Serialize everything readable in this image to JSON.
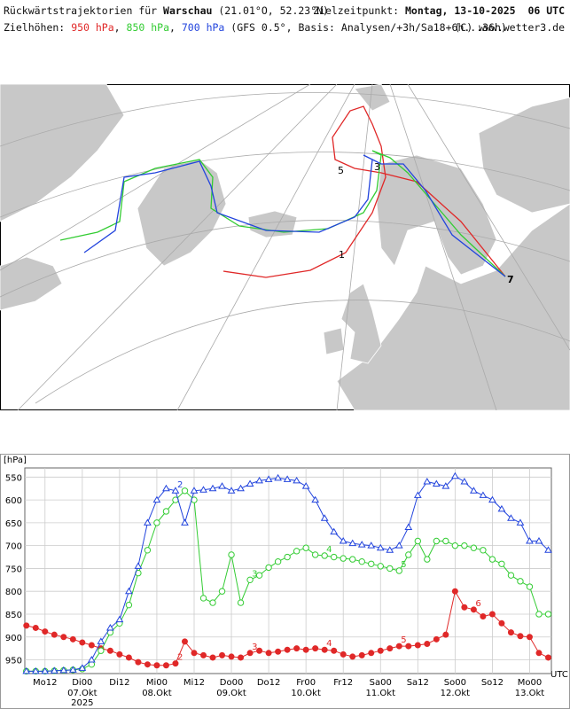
{
  "header": {
    "title_prefix": "Rückwärtstrajektorien für",
    "station": "Warschau",
    "coords": "(21.01°O, 52.23°N)",
    "target_label": "Zielzeitpunkt:",
    "target_time": "Montag, 13-10-2025  06 UTC",
    "levels_label": "Zielhöhen:",
    "separator": ",",
    "model_info": "(GFS 0.5°, Basis: Analysen/+3h/Sa18+6h...36h)",
    "copyright": "(C) www.wetter3.de"
  },
  "map": {
    "labels": [
      "1",
      "5",
      "3",
      "7"
    ]
  },
  "chart_data": {
    "type": "line",
    "y_unit_label": "[hPa]",
    "x_unit_label": "UTC",
    "x": [
      0,
      3,
      6,
      9,
      12,
      15,
      18,
      21,
      24,
      27,
      30,
      33,
      36,
      39,
      42,
      45,
      48,
      51,
      54,
      57,
      60,
      63,
      66,
      69,
      72,
      75,
      78,
      81,
      84,
      87,
      90,
      93,
      96,
      99,
      102,
      105,
      108,
      111,
      114,
      117,
      120,
      123,
      126,
      129,
      132,
      135,
      138,
      141,
      144,
      147,
      150,
      153,
      156,
      159,
      162,
      165,
      168
    ],
    "xlim": [
      -0.5,
      169
    ],
    "xticks": [
      {
        "value": 6,
        "label": "Mo12"
      },
      {
        "value": 18,
        "label": "Di00"
      },
      {
        "value": 30,
        "label": "Di12"
      },
      {
        "value": 42,
        "label": "Mi00"
      },
      {
        "value": 54,
        "label": "Mi12"
      },
      {
        "value": 66,
        "label": "Do00"
      },
      {
        "value": 78,
        "label": "Do12"
      },
      {
        "value": 90,
        "label": "Fr00"
      },
      {
        "value": 102,
        "label": "Fr12"
      },
      {
        "value": 114,
        "label": "Sa00"
      },
      {
        "value": 126,
        "label": "Sa12"
      },
      {
        "value": 138,
        "label": "So00"
      },
      {
        "value": 150,
        "label": "So12"
      },
      {
        "value": 162,
        "label": "Mo00"
      }
    ],
    "date_ticks": [
      {
        "value": 18,
        "label": "07.Okt"
      },
      {
        "value": 42,
        "label": "08.Okt"
      },
      {
        "value": 66,
        "label": "09.Okt"
      },
      {
        "value": 90,
        "label": "10.Okt"
      },
      {
        "value": 114,
        "label": "11.Okt"
      },
      {
        "value": 138,
        "label": "12.Okt"
      },
      {
        "value": 162,
        "label": "13.Okt"
      }
    ],
    "year_tick": {
      "value": 18,
      "label": "2025"
    },
    "ylim": [
      980,
      530
    ],
    "yticks": [
      550,
      600,
      650,
      700,
      750,
      800,
      850,
      900,
      950
    ],
    "grid": true,
    "series": [
      {
        "name": "950 hPa",
        "color": "#e02828",
        "marker": "filled-circle",
        "values": [
          875,
          880,
          888,
          895,
          900,
          905,
          912,
          918,
          925,
          930,
          938,
          945,
          955,
          960,
          962,
          962,
          958,
          910,
          935,
          940,
          945,
          940,
          943,
          945,
          935,
          930,
          935,
          932,
          928,
          925,
          928,
          925,
          928,
          930,
          938,
          943,
          940,
          935,
          930,
          925,
          920,
          920,
          918,
          915,
          905,
          895,
          800,
          835,
          840,
          855,
          850,
          870,
          890,
          898,
          900,
          935,
          945
        ]
      },
      {
        "name": "850 hPa",
        "color": "#33cc33",
        "marker": "open-circle",
        "values": [
          975,
          975,
          975,
          974,
          973,
          972,
          970,
          960,
          930,
          890,
          870,
          830,
          760,
          710,
          650,
          625,
          600,
          580,
          600,
          815,
          825,
          800,
          720,
          825,
          775,
          765,
          748,
          735,
          725,
          712,
          705,
          720,
          722,
          725,
          728,
          730,
          735,
          740,
          745,
          750,
          755,
          720,
          690,
          730,
          690,
          690,
          700,
          700,
          705,
          710,
          730,
          740,
          765,
          778,
          790,
          850,
          850
        ]
      },
      {
        "name": "700 hPa",
        "color": "#2244dd",
        "marker": "open-triangle",
        "values": [
          975,
          975,
          975,
          974,
          973,
          972,
          968,
          950,
          910,
          880,
          862,
          800,
          745,
          650,
          600,
          575,
          580,
          650,
          580,
          578,
          575,
          570,
          580,
          575,
          565,
          558,
          555,
          552,
          555,
          558,
          570,
          600,
          640,
          670,
          690,
          695,
          698,
          700,
          705,
          710,
          700,
          660,
          590,
          560,
          565,
          570,
          548,
          560,
          580,
          590,
          600,
          620,
          640,
          650,
          690,
          690,
          710
        ]
      }
    ],
    "day_labels": [
      {
        "series": 0,
        "x": 48,
        "label": "2"
      },
      {
        "series": 0,
        "x": 72,
        "label": "3"
      },
      {
        "series": 0,
        "x": 96,
        "label": "4"
      },
      {
        "series": 0,
        "x": 120,
        "label": "5"
      },
      {
        "series": 0,
        "x": 144,
        "label": "6"
      },
      {
        "series": 2,
        "x": 48,
        "label": "2"
      },
      {
        "series": 1,
        "x": 72,
        "label": "3"
      },
      {
        "series": 1,
        "x": 96,
        "label": "4"
      },
      {
        "series": 1,
        "x": 120,
        "label": "5"
      }
    ]
  }
}
